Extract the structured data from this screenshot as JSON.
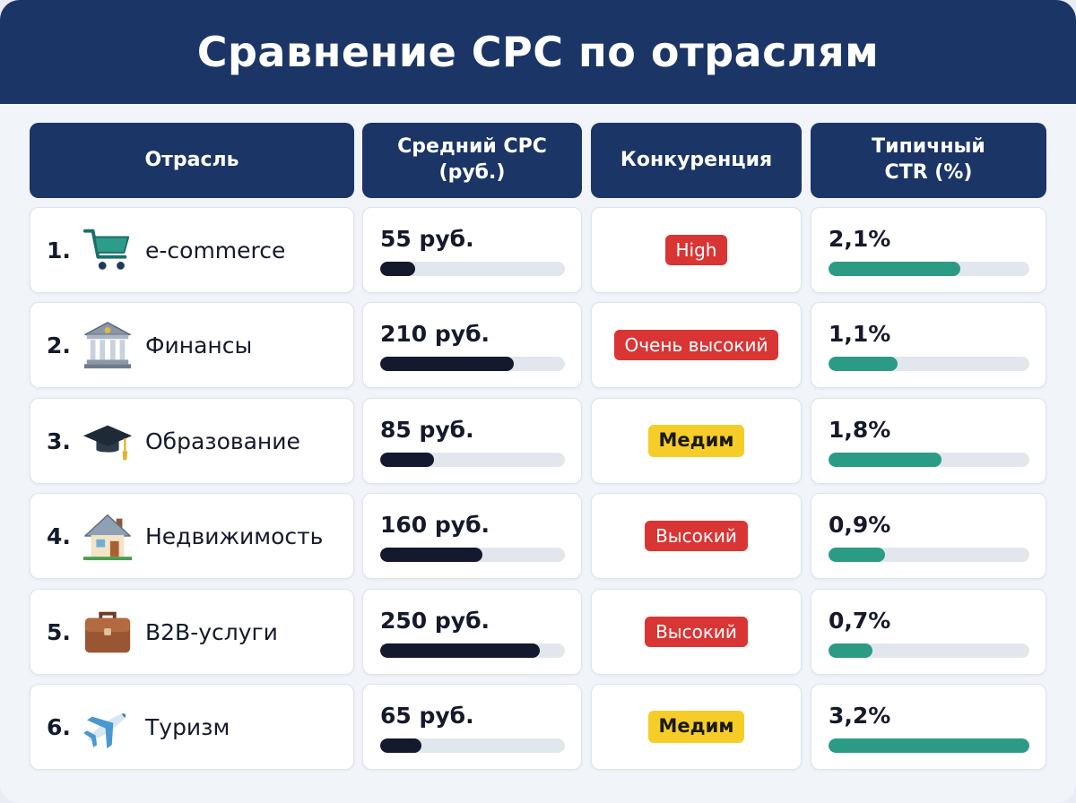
{
  "title": "Сравнение CPC по отраслям",
  "columns": [
    "Отрасль",
    "Средний CPC (руб.)",
    "Конкуренция",
    "Типичный CTR (%)"
  ],
  "colors": {
    "header_bg": "#1b3566",
    "cpc_bar": "#14192e",
    "ctr_bar": "#2b9b86",
    "badge_red": "#d93535",
    "badge_yellow": "#f6cd28"
  },
  "rows": [
    {
      "num": "1.",
      "icon": "shopping-cart-icon",
      "industry": "e-commerce",
      "cpc_label": "55 руб.",
      "cpc": 55,
      "competition": "High",
      "competition_color": "red",
      "ctr_label": "2,1%",
      "ctr": 2.1
    },
    {
      "num": "2.",
      "icon": "bank-building-icon",
      "industry": "Финансы",
      "cpc_label": "210 руб.",
      "cpc": 210,
      "competition": "Очень высокий",
      "competition_color": "red",
      "ctr_label": "1,1%",
      "ctr": 1.1
    },
    {
      "num": "3.",
      "icon": "graduation-cap-icon",
      "industry": "Образование",
      "cpc_label": "85 руб.",
      "cpc": 85,
      "competition": "Медим",
      "competition_color": "yellow",
      "ctr_label": "1,8%",
      "ctr": 1.8
    },
    {
      "num": "4.",
      "icon": "house-icon",
      "industry": "Недвижимость",
      "cpc_label": "160 руб.",
      "cpc": 160,
      "competition": "Высокий",
      "competition_color": "red",
      "ctr_label": "0,9%",
      "ctr": 0.9
    },
    {
      "num": "5.",
      "icon": "briefcase-icon",
      "industry": "B2B-услуги",
      "cpc_label": "250 руб.",
      "cpc": 250,
      "competition": "Высокий",
      "competition_color": "red",
      "ctr_label": "0,7%",
      "ctr": 0.7
    },
    {
      "num": "6.",
      "icon": "airplane-icon",
      "industry": "Туризм",
      "cpc_label": "65 руб.",
      "cpc": 65,
      "competition": "Медим",
      "competition_color": "yellow",
      "ctr_label": "3,2%",
      "ctr": 3.2
    }
  ],
  "chart_data": {
    "type": "table",
    "title": "Сравнение CPC по отраслям",
    "columns": [
      "Отрасль",
      "Средний CPC (руб.)",
      "Конкуренция",
      "Типичный CTR (%)"
    ],
    "categories": [
      "e-commerce",
      "Финансы",
      "Образование",
      "Недвижимость",
      "B2B-услуги",
      "Туризм"
    ],
    "series": [
      {
        "values": [
          55,
          210,
          85,
          160,
          250,
          65
        ]
      },
      {
        "values": [
          2.1,
          1.1,
          1.8,
          0.9,
          0.7,
          3.2
        ]
      }
    ],
    "competition": [
      "High",
      "Очень высокий",
      "Медим",
      "Высокий",
      "Высокий",
      "Медим"
    ]
  }
}
